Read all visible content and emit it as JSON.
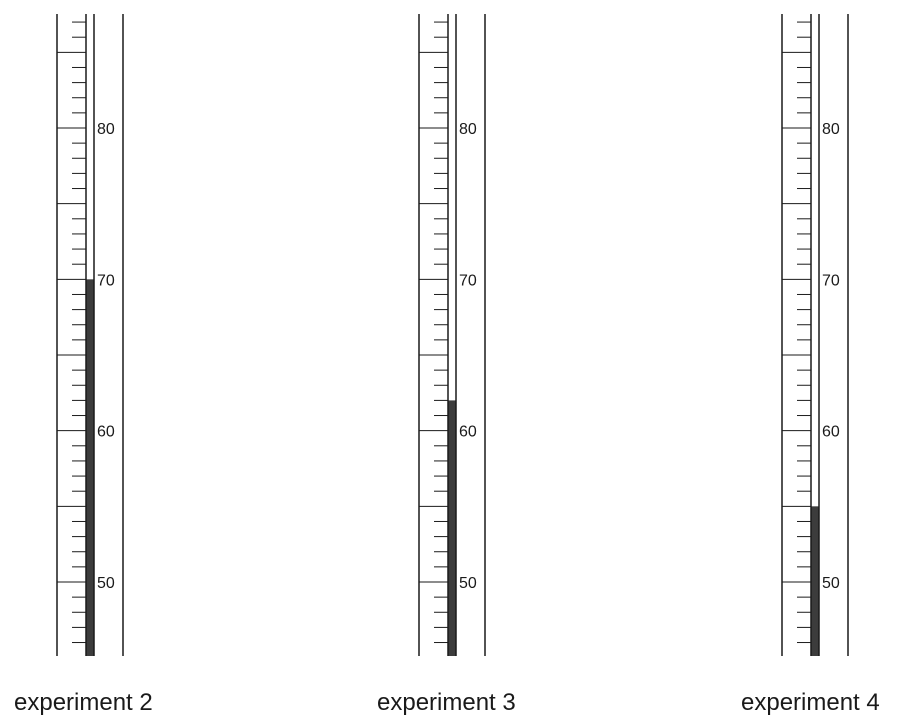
{
  "scale": {
    "min": 45.5,
    "max": 88,
    "minor_step": 1,
    "major_step": 5,
    "label_step": 10
  },
  "chart_data": {
    "type": "thermometer",
    "unit": "",
    "tick_labels": [
      "50",
      "60",
      "70",
      "80"
    ],
    "readings": [
      {
        "label": "experiment 2",
        "value": 70
      },
      {
        "label": "experiment 3",
        "value": 62
      },
      {
        "label": "experiment 4",
        "value": 55
      }
    ]
  },
  "colors": {
    "line": "#1a1a1a",
    "fill": "#3c3c3c"
  }
}
